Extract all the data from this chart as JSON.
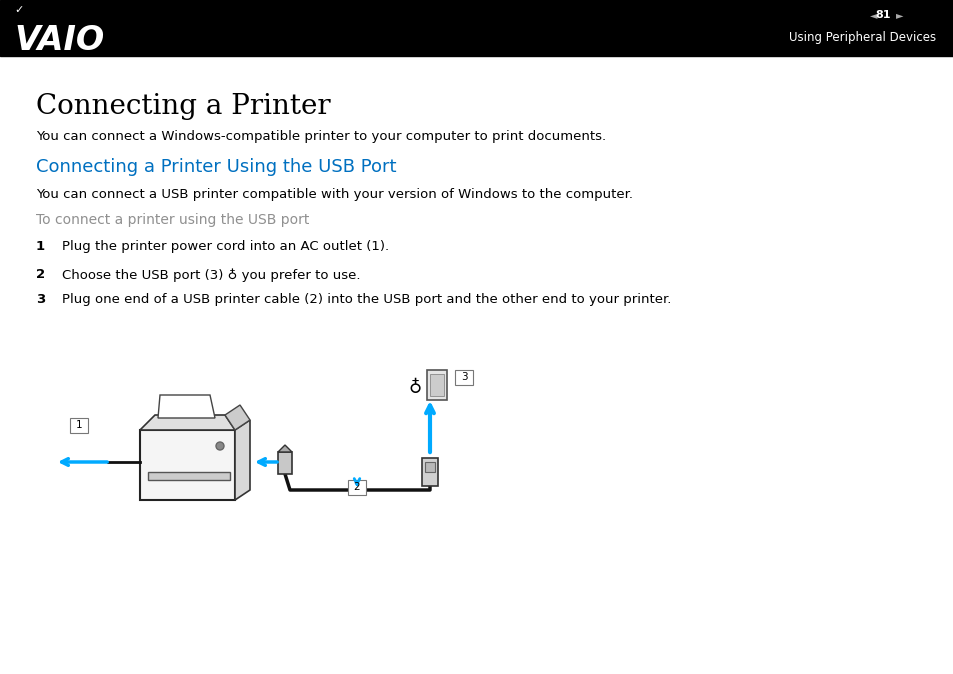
{
  "bg_color": "#ffffff",
  "header_bg": "#000000",
  "header_text_color": "#ffffff",
  "page_number": "81",
  "header_right_text": "Using Peripheral Devices",
  "title_main": "Connecting a Printer",
  "title_main_fontsize": 20,
  "subtitle_blue": "Connecting a Printer Using the USB Port",
  "subtitle_blue_color": "#0070c0",
  "subtitle_blue_fontsize": 13,
  "body_text_color": "#000000",
  "gray_heading": "To connect a printer using the USB port",
  "gray_heading_color": "#909090",
  "para1": "You can connect a Windows-compatible printer to your computer to print documents.",
  "para2": "You can connect a USB printer compatible with your version of Windows to the computer.",
  "step1": "Plug the printer power cord into an AC outlet (1).",
  "step2_prefix": "Choose the USB port (3) ",
  "step2_suffix": " you prefer to use.",
  "step3": "Plug one end of a USB printer cable (2) into the USB port and the other end to your printer.",
  "body_fontsize": 9.5,
  "step_fontsize": 9.5,
  "arrow_color": "#00aaff",
  "cable_color": "#111111"
}
